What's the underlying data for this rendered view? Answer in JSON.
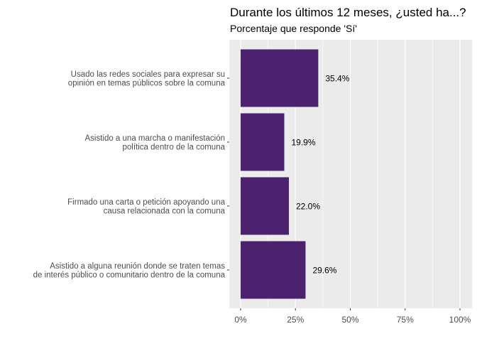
{
  "chart_data": {
    "type": "bar",
    "orientation": "horizontal",
    "title": "Durante los últimos 12 meses, ¿usted ha...?",
    "subtitle": "Porcentaje que responde 'Sí'",
    "xlabel": "",
    "ylabel": "",
    "xlim": [
      0,
      100
    ],
    "x_ticks": [
      "0%",
      "25%",
      "50%",
      "75%",
      "100%"
    ],
    "grid": true,
    "bar_color": "#4B2170",
    "panel_color": "#EBEBEB",
    "categories": [
      [
        "Usado las redes sociales para expresar su",
        "opinión en temas públicos sobre la comuna"
      ],
      [
        "Asistido a una marcha o manifestación",
        "política dentro de la comuna"
      ],
      [
        "Firmado una carta o petición apoyando una",
        "causa relacionada con la comuna"
      ],
      [
        "Asistido a alguna reunión donde se traten temas",
        "de interés público o comunitario dentro de la comuna"
      ]
    ],
    "values": [
      35.4,
      19.9,
      22.0,
      29.6
    ],
    "data_labels": [
      "35.4%",
      "19.9%",
      "22.0%",
      "29.6%"
    ]
  }
}
